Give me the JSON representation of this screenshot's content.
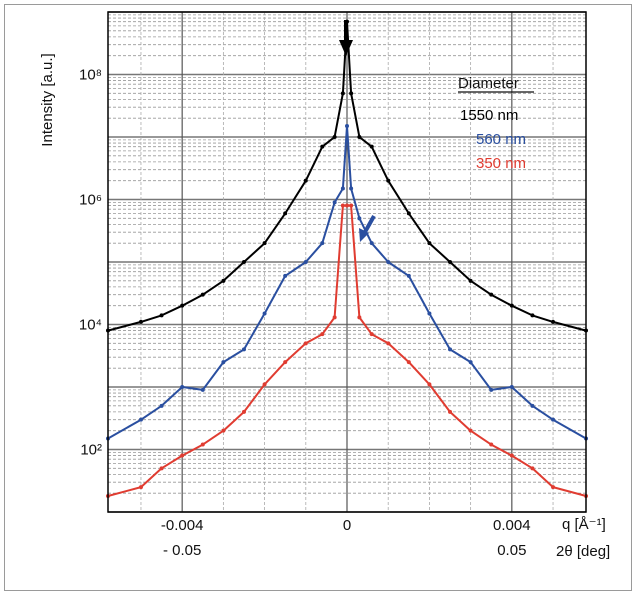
{
  "chart_data": {
    "type": "line",
    "ylabel": "Intensity [a.u.]",
    "xlabel_q": "q [Å⁻¹]",
    "xlabel_2theta": "2θ [deg]",
    "y_scale": "log",
    "ylim": [
      10,
      1000000000
    ],
    "xlim": [
      -0.0058,
      0.0058
    ],
    "x_ticks_q": [
      "-0.004",
      "0",
      "0.004"
    ],
    "x_ticks_2theta": [
      "- 0.05",
      "0.05"
    ],
    "y_ticks": [
      "10²",
      "10⁴",
      "10⁶",
      "10⁸"
    ],
    "grid": true,
    "legend": {
      "title": "Diameter",
      "placement": "top-right",
      "entries": [
        "1550 nm",
        "560 nm",
        "350 nm"
      ]
    },
    "annotations": [
      "arrow at q = 0 (top)",
      "blue arrow near q = 0.0005"
    ],
    "x": [
      -0.0058,
      -0.005,
      -0.0045,
      -0.004,
      -0.0035,
      -0.003,
      -0.0025,
      -0.002,
      -0.0015,
      -0.001,
      -0.0006,
      -0.0003,
      -0.0001,
      0,
      0.0001,
      0.0003,
      0.0006,
      0.001,
      0.0015,
      0.002,
      0.0025,
      0.003,
      0.0035,
      0.004,
      0.0045,
      0.005,
      0.0058
    ],
    "series": [
      {
        "name": "1550 nm",
        "color": "#000000",
        "values": [
          8000,
          11000,
          14000,
          20000,
          30000,
          50000,
          100000,
          200000,
          600000,
          2000000,
          7000000,
          10000000,
          50000000,
          700000000,
          50000000,
          10000000,
          7000000,
          2000000,
          600000,
          200000,
          100000,
          50000,
          30000,
          20000,
          14000,
          11000,
          8000
        ]
      },
      {
        "name": "560 nm",
        "color": "#2a4fa0",
        "values": [
          150,
          300,
          500,
          1000,
          900,
          2500,
          4000,
          15000,
          60000,
          100000,
          200000,
          900000,
          1500000,
          15000000,
          1500000,
          500000,
          200000,
          100000,
          60000,
          15000,
          4000,
          2500,
          900,
          1000,
          500,
          300,
          150
        ]
      },
      {
        "name": "350 nm",
        "color": "#e03c31",
        "values": [
          18,
          25,
          50,
          80,
          120,
          200,
          400,
          1100,
          2500,
          5000,
          7000,
          13000,
          800000,
          800000,
          800000,
          13000,
          7000,
          5000,
          2500,
          1100,
          400,
          200,
          120,
          80,
          50,
          25,
          18
        ]
      }
    ]
  }
}
